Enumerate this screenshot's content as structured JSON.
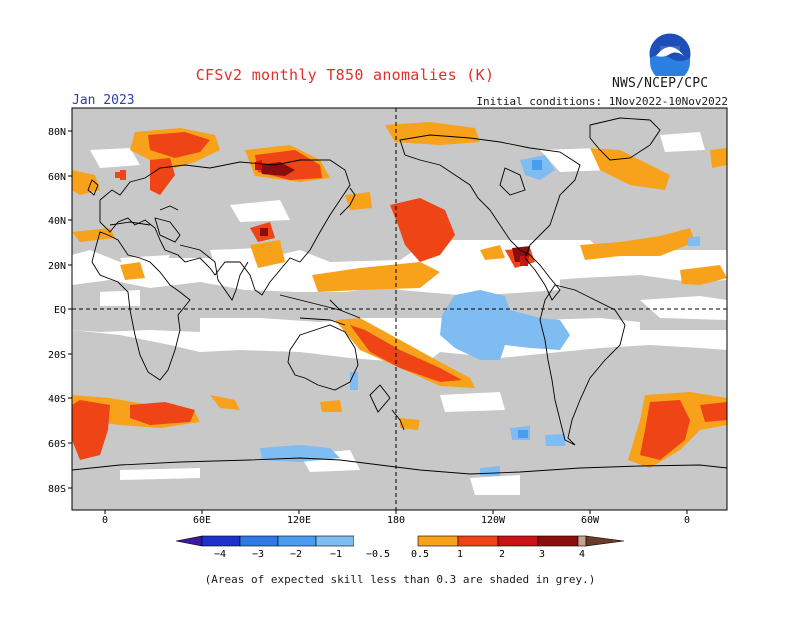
{
  "header": {
    "title": "CFSv2 monthly T850 anomalies (K)",
    "org": "NWS/NCEP/CPC",
    "target_month": "Jan 2023",
    "initial_conditions": "Initial conditions: 1Nov2022-10Nov2022"
  },
  "map": {
    "lat_labels": [
      "80N",
      "60N",
      "40N",
      "20N",
      "EQ",
      "20S",
      "40S",
      "60S",
      "80S"
    ],
    "lon_labels": [
      "0",
      "60E",
      "120E",
      "180",
      "120W",
      "60W",
      "0"
    ],
    "skill_shading_color": "#c8c8c8"
  },
  "colorbar": {
    "labels": [
      "−4",
      "−3",
      "−2",
      "−1",
      "−0.5",
      "0.5",
      "1",
      "2",
      "3",
      "4"
    ],
    "colors": {
      "lt_-4": "#3b1aa0",
      "-4_-3": "#1c32c8",
      "-3_-2": "#2f78e6",
      "-2_-1": "#4a9cec",
      "-1_-0.5": "#7fbcf2",
      "-0.5_0.5": "#ffffff",
      "0.5_1": "#f7a21a",
      "1_2": "#ee4416",
      "2_3": "#c81414",
      "3_4": "#8a0e0e",
      "4_5": "#c9a092",
      "gt_5": "#6b3a2a"
    }
  },
  "footnote": "(Areas of expected skill less than 0.3 are shaded in grey.)"
}
